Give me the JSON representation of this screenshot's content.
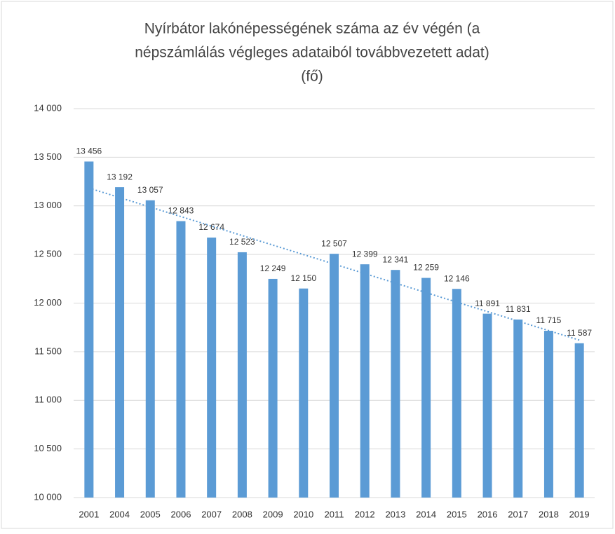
{
  "chart_data": {
    "type": "bar",
    "title": [
      "Nyírbátor lakónépességének száma az év végén (a",
      "népszámlálás végleges adataiból továbbvezetett adat)",
      "(fő)"
    ],
    "categories": [
      "2001",
      "2004",
      "2005",
      "2006",
      "2007",
      "2008",
      "2009",
      "2010",
      "2011",
      "2012",
      "2013",
      "2014",
      "2015",
      "2016",
      "2017",
      "2018",
      "2019"
    ],
    "values": [
      13456,
      13192,
      13057,
      12843,
      12674,
      12523,
      12249,
      12150,
      12507,
      12399,
      12341,
      12259,
      12146,
      11891,
      11831,
      11715,
      11587
    ],
    "value_labels": [
      "13 456",
      "13 192",
      "13 057",
      "12 843",
      "12 674",
      "12 523",
      "12 249",
      "12 150",
      "12 507",
      "12 399",
      "12 341",
      "12 259",
      "12 146",
      "11 891",
      "11 831",
      "11 715",
      "11 587"
    ],
    "color": "#5b9bd5",
    "ylim": [
      10000,
      14000
    ],
    "yticks": [
      {
        "value": 10000,
        "label": "10 000"
      },
      {
        "value": 10500,
        "label": "10 500"
      },
      {
        "value": 11000,
        "label": "11 000"
      },
      {
        "value": 11500,
        "label": "11 500"
      },
      {
        "value": 12000,
        "label": "12 000"
      },
      {
        "value": 12500,
        "label": "12 500"
      },
      {
        "value": 13000,
        "label": "13 000"
      },
      {
        "value": 13500,
        "label": "13 500"
      },
      {
        "value": 14000,
        "label": "14 000"
      }
    ],
    "grid": true,
    "trendline": true
  }
}
